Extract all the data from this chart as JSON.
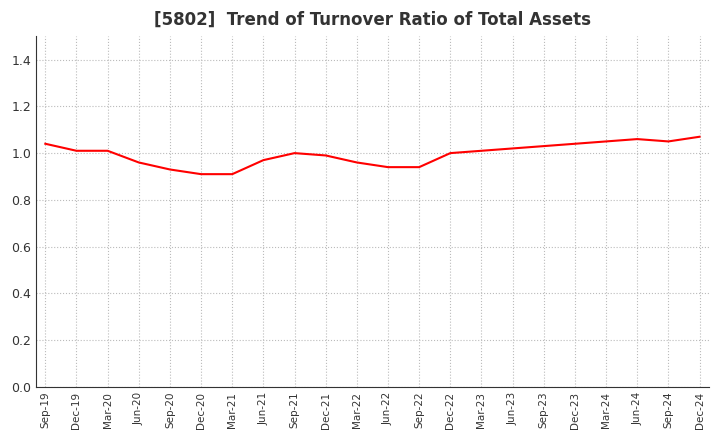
{
  "title": "[5802]  Trend of Turnover Ratio of Total Assets",
  "title_fontsize": 12,
  "title_color": "#333333",
  "line_color": "#ff0000",
  "line_width": 1.5,
  "background_color": "#ffffff",
  "grid_color": "#bbbbbb",
  "ylim": [
    0.0,
    1.5
  ],
  "yticks": [
    0.0,
    0.2,
    0.4,
    0.6,
    0.8,
    1.0,
    1.2,
    1.4
  ],
  "x_labels": [
    "Sep-19",
    "Dec-19",
    "Mar-20",
    "Jun-20",
    "Sep-20",
    "Dec-20",
    "Mar-21",
    "Jun-21",
    "Sep-21",
    "Dec-21",
    "Mar-22",
    "Jun-22",
    "Sep-22",
    "Dec-22",
    "Mar-23",
    "Jun-23",
    "Sep-23",
    "Dec-23",
    "Mar-24",
    "Jun-24",
    "Sep-24",
    "Dec-24"
  ],
  "values": [
    1.04,
    1.01,
    1.01,
    0.96,
    0.93,
    0.91,
    0.91,
    0.97,
    1.0,
    0.99,
    0.96,
    0.94,
    0.94,
    1.0,
    1.01,
    1.02,
    1.03,
    1.04,
    1.05,
    1.06,
    1.05,
    1.07
  ]
}
